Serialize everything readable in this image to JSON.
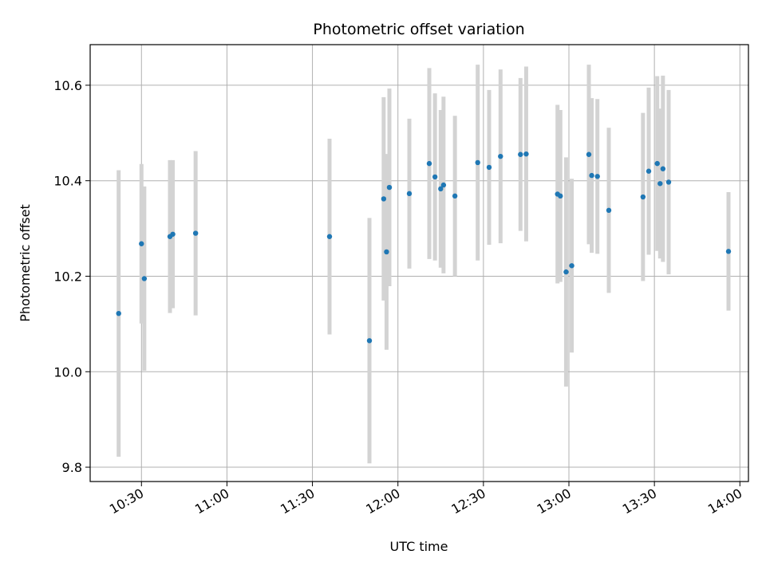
{
  "chart_data": {
    "type": "scatter",
    "title": "Photometric offset variation",
    "xlabel": "UTC time",
    "ylabel": "Photometric offset",
    "xlim": [
      "10:12",
      "14:03"
    ],
    "ylim": [
      9.77,
      10.685
    ],
    "grid": true,
    "x_ticks": [
      "10:30",
      "11:00",
      "11:30",
      "12:00",
      "12:30",
      "13:00",
      "13:30",
      "14:00"
    ],
    "y_ticks": [
      "9.8",
      "10.0",
      "10.2",
      "10.4",
      "10.6"
    ],
    "point_color": "#1f77b4",
    "errorbar_color": "#d3d3d3",
    "points": [
      {
        "x": "10:22",
        "y": 10.122,
        "err": 0.3
      },
      {
        "x": "10:30",
        "y": 10.268,
        "err": 0.167
      },
      {
        "x": "10:31",
        "y": 10.195,
        "err": 0.193
      },
      {
        "x": "10:40",
        "y": 10.283,
        "err": 0.16
      },
      {
        "x": "10:41",
        "y": 10.288,
        "err": 0.155
      },
      {
        "x": "10:49",
        "y": 10.29,
        "err": 0.172
      },
      {
        "x": "11:36",
        "y": 10.283,
        "err": 0.205
      },
      {
        "x": "11:50",
        "y": 10.065,
        "err": 0.257
      },
      {
        "x": "11:55",
        "y": 10.362,
        "err": 0.213
      },
      {
        "x": "11:56",
        "y": 10.251,
        "err": 0.205
      },
      {
        "x": "11:57",
        "y": 10.386,
        "err": 0.207
      },
      {
        "x": "12:04",
        "y": 10.373,
        "err": 0.157
      },
      {
        "x": "12:11",
        "y": 10.436,
        "err": 0.2
      },
      {
        "x": "12:13",
        "y": 10.408,
        "err": 0.175
      },
      {
        "x": "12:15",
        "y": 10.383,
        "err": 0.165
      },
      {
        "x": "12:16",
        "y": 10.391,
        "err": 0.185
      },
      {
        "x": "12:20",
        "y": 10.368,
        "err": 0.168
      },
      {
        "x": "12:28",
        "y": 10.438,
        "err": 0.205
      },
      {
        "x": "12:32",
        "y": 10.428,
        "err": 0.162
      },
      {
        "x": "12:36",
        "y": 10.451,
        "err": 0.182
      },
      {
        "x": "12:43",
        "y": 10.455,
        "err": 0.16
      },
      {
        "x": "12:45",
        "y": 10.456,
        "err": 0.183
      },
      {
        "x": "12:56",
        "y": 10.372,
        "err": 0.187
      },
      {
        "x": "12:57",
        "y": 10.368,
        "err": 0.18
      },
      {
        "x": "12:59",
        "y": 10.209,
        "err": 0.24
      },
      {
        "x": "13:01",
        "y": 10.222,
        "err": 0.182
      },
      {
        "x": "13:07",
        "y": 10.455,
        "err": 0.188
      },
      {
        "x": "13:08",
        "y": 10.411,
        "err": 0.162
      },
      {
        "x": "13:10",
        "y": 10.409,
        "err": 0.162
      },
      {
        "x": "13:14",
        "y": 10.338,
        "err": 0.173
      },
      {
        "x": "13:26",
        "y": 10.366,
        "err": 0.176
      },
      {
        "x": "13:28",
        "y": 10.42,
        "err": 0.175
      },
      {
        "x": "13:31",
        "y": 10.436,
        "err": 0.183
      },
      {
        "x": "13:32",
        "y": 10.394,
        "err": 0.157
      },
      {
        "x": "13:33",
        "y": 10.425,
        "err": 0.195
      },
      {
        "x": "13:35",
        "y": 10.397,
        "err": 0.193
      },
      {
        "x": "13:56",
        "y": 10.252,
        "err": 0.124
      }
    ]
  }
}
